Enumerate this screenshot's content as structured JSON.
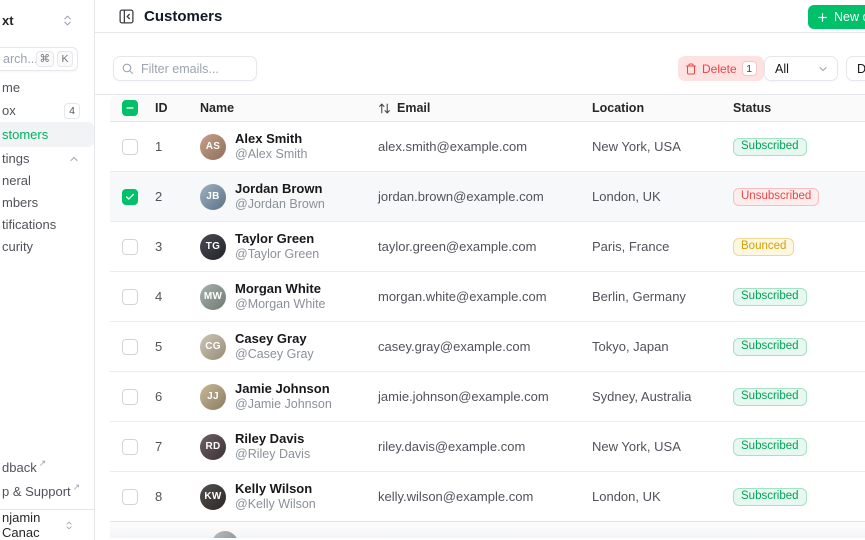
{
  "colors": {
    "accent_green": "#00c16a",
    "success_text": "#00a155",
    "error_text": "#ef4444",
    "warning_text": "#d4a106",
    "delete_bg": "#fee2e2",
    "border": "#e5e7eb"
  },
  "sidebar": {
    "team_label": "xt",
    "search": {
      "visible_text": "arch...",
      "kbd_meta": "⌘",
      "kbd_key": "K"
    },
    "nav": {
      "home_label": "me",
      "inbox_label": "ox",
      "inbox_badge": "4",
      "customers_label": "stomers",
      "settings_label": "tings"
    },
    "subnav": {
      "general_label": "neral",
      "members_label": "mbers",
      "notifications_label": "tifications",
      "security_label": "curity"
    },
    "footer": {
      "feedback_label": "dback",
      "support_label": "p & Support",
      "external_arrow": "↗"
    },
    "user_name": "njamin Canac"
  },
  "header": {
    "title": "Customers",
    "new_customer_label": "New customer"
  },
  "toolbar": {
    "filter_placeholder": "Filter emails...",
    "delete_label": "Delete",
    "delete_count": "1",
    "status_filter_value": "All",
    "display_label": "Display"
  },
  "table": {
    "columns": {
      "id": "ID",
      "name": "Name",
      "email": "Email",
      "location": "Location",
      "status": "Status"
    },
    "rows": [
      {
        "id": "1",
        "name": "Alex Smith",
        "handle": "@Alex Smith",
        "email": "alex.smith@example.com",
        "location": "New York, USA",
        "status": "Subscribed",
        "status_type": "success",
        "checked": false
      },
      {
        "id": "2",
        "name": "Jordan Brown",
        "handle": "@Jordan Brown",
        "email": "jordan.brown@example.com",
        "location": "London, UK",
        "status": "Unsubscribed",
        "status_type": "error",
        "checked": true
      },
      {
        "id": "3",
        "name": "Taylor Green",
        "handle": "@Taylor Green",
        "email": "taylor.green@example.com",
        "location": "Paris, France",
        "status": "Bounced",
        "status_type": "warning",
        "checked": false
      },
      {
        "id": "4",
        "name": "Morgan White",
        "handle": "@Morgan White",
        "email": "morgan.white@example.com",
        "location": "Berlin, Germany",
        "status": "Subscribed",
        "status_type": "success",
        "checked": false
      },
      {
        "id": "5",
        "name": "Casey Gray",
        "handle": "@Casey Gray",
        "email": "casey.gray@example.com",
        "location": "Tokyo, Japan",
        "status": "Subscribed",
        "status_type": "success",
        "checked": false
      },
      {
        "id": "6",
        "name": "Jamie Johnson",
        "handle": "@Jamie Johnson",
        "email": "jamie.johnson@example.com",
        "location": "Sydney, Australia",
        "status": "Subscribed",
        "status_type": "success",
        "checked": false
      },
      {
        "id": "7",
        "name": "Riley Davis",
        "handle": "@Riley Davis",
        "email": "riley.davis@example.com",
        "location": "New York, USA",
        "status": "Subscribed",
        "status_type": "success",
        "checked": false
      },
      {
        "id": "8",
        "name": "Kelly Wilson",
        "handle": "@Kelly Wilson",
        "email": "kelly.wilson@example.com",
        "location": "London, UK",
        "status": "Subscribed",
        "status_type": "success",
        "checked": false
      }
    ]
  }
}
